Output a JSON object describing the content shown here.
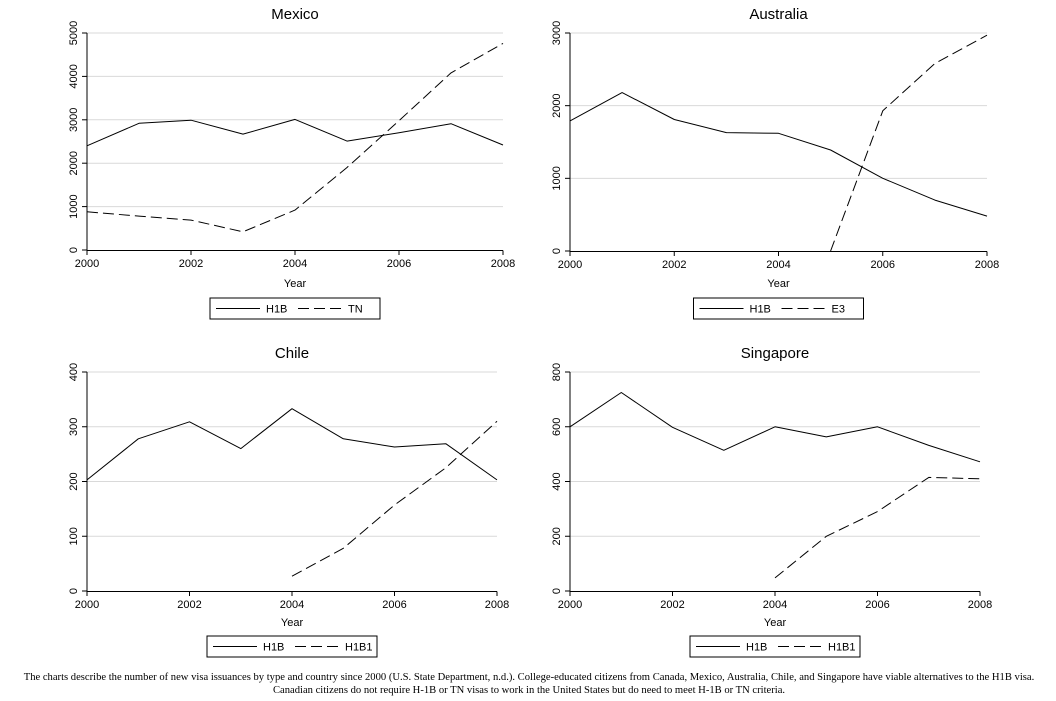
{
  "chart_data": [
    {
      "type": "line",
      "title": "Mexico",
      "xlabel": "Year",
      "ylabel": "",
      "xlim": [
        2000,
        2008
      ],
      "ylim": [
        0,
        5000
      ],
      "xticks": [
        2000,
        2002,
        2004,
        2006,
        2008
      ],
      "yticks": [
        0,
        1000,
        2000,
        3000,
        4000,
        5000
      ],
      "grid": true,
      "legend": "bottom",
      "series": [
        {
          "name": "H1B",
          "dash": "solid",
          "x": [
            2000,
            2001,
            2002,
            2003,
            2004,
            2005,
            2006,
            2007,
            2008
          ],
          "values": [
            2400,
            2920,
            2990,
            2670,
            3010,
            2510,
            2700,
            2910,
            2420
          ]
        },
        {
          "name": "TN",
          "dash": "long-dash",
          "x": [
            2000,
            2001,
            2002,
            2003,
            2004,
            2005,
            2006,
            2007,
            2008
          ],
          "values": [
            880,
            780,
            690,
            420,
            920,
            1900,
            2980,
            4080,
            4760
          ]
        }
      ]
    },
    {
      "type": "line",
      "title": "Australia",
      "xlabel": "Year",
      "ylabel": "",
      "xlim": [
        2000,
        2008
      ],
      "ylim": [
        0,
        3000
      ],
      "xticks": [
        2000,
        2002,
        2004,
        2006,
        2008
      ],
      "yticks": [
        0,
        1000,
        2000,
        3000
      ],
      "grid": true,
      "legend": "bottom",
      "series": [
        {
          "name": "H1B",
          "dash": "solid",
          "x": [
            2000,
            2001,
            2002,
            2003,
            2004,
            2005,
            2006,
            2007,
            2008
          ],
          "values": [
            1790,
            2180,
            1810,
            1630,
            1620,
            1390,
            1000,
            700,
            480
          ]
        },
        {
          "name": "E3",
          "dash": "long-dash",
          "x": [
            2005,
            2006,
            2007,
            2008
          ],
          "values": [
            0,
            1930,
            2580,
            2970
          ]
        }
      ]
    },
    {
      "type": "line",
      "title": "Chile",
      "xlabel": "Year",
      "ylabel": "",
      "xlim": [
        2000,
        2008
      ],
      "ylim": [
        0,
        400
      ],
      "xticks": [
        2000,
        2002,
        2004,
        2006,
        2008
      ],
      "yticks": [
        0,
        100,
        200,
        300,
        400
      ],
      "grid": true,
      "legend": "bottom",
      "series": [
        {
          "name": "H1B",
          "dash": "solid",
          "x": [
            2000,
            2001,
            2002,
            2003,
            2004,
            2005,
            2006,
            2007,
            2008
          ],
          "values": [
            203,
            278,
            309,
            260,
            333,
            278,
            263,
            269,
            203
          ]
        },
        {
          "name": "H1B1",
          "dash": "long-dash",
          "x": [
            2004,
            2005,
            2006,
            2007,
            2008
          ],
          "values": [
            27,
            78,
            157,
            225,
            310
          ]
        }
      ]
    },
    {
      "type": "line",
      "title": "Singapore",
      "xlabel": "Year",
      "ylabel": "",
      "xlim": [
        2000,
        2008
      ],
      "ylim": [
        0,
        800
      ],
      "xticks": [
        2000,
        2002,
        2004,
        2006,
        2008
      ],
      "yticks": [
        0,
        200,
        400,
        600,
        800
      ],
      "grid": true,
      "legend": "bottom",
      "series": [
        {
          "name": "H1B",
          "dash": "solid",
          "x": [
            2000,
            2001,
            2002,
            2003,
            2004,
            2005,
            2006,
            2007,
            2008
          ],
          "values": [
            600,
            725,
            598,
            514,
            600,
            563,
            600,
            532,
            472
          ]
        },
        {
          "name": "H1B1",
          "dash": "long-dash",
          "x": [
            2004,
            2005,
            2006,
            2007,
            2008
          ],
          "values": [
            48,
            200,
            290,
            415,
            410
          ]
        }
      ]
    }
  ],
  "caption": "The charts describe the number of new visa issuances by type and country since 2000 (U.S. State Department, n.d.). College-educated citizens from Canada, Mexico, Australia, Chile, and Singapore have viable alternatives to the H1B visa. Canadian citizens do not require H-1B or TN visas to work in the United States but do need to meet H-1B or TN criteria."
}
